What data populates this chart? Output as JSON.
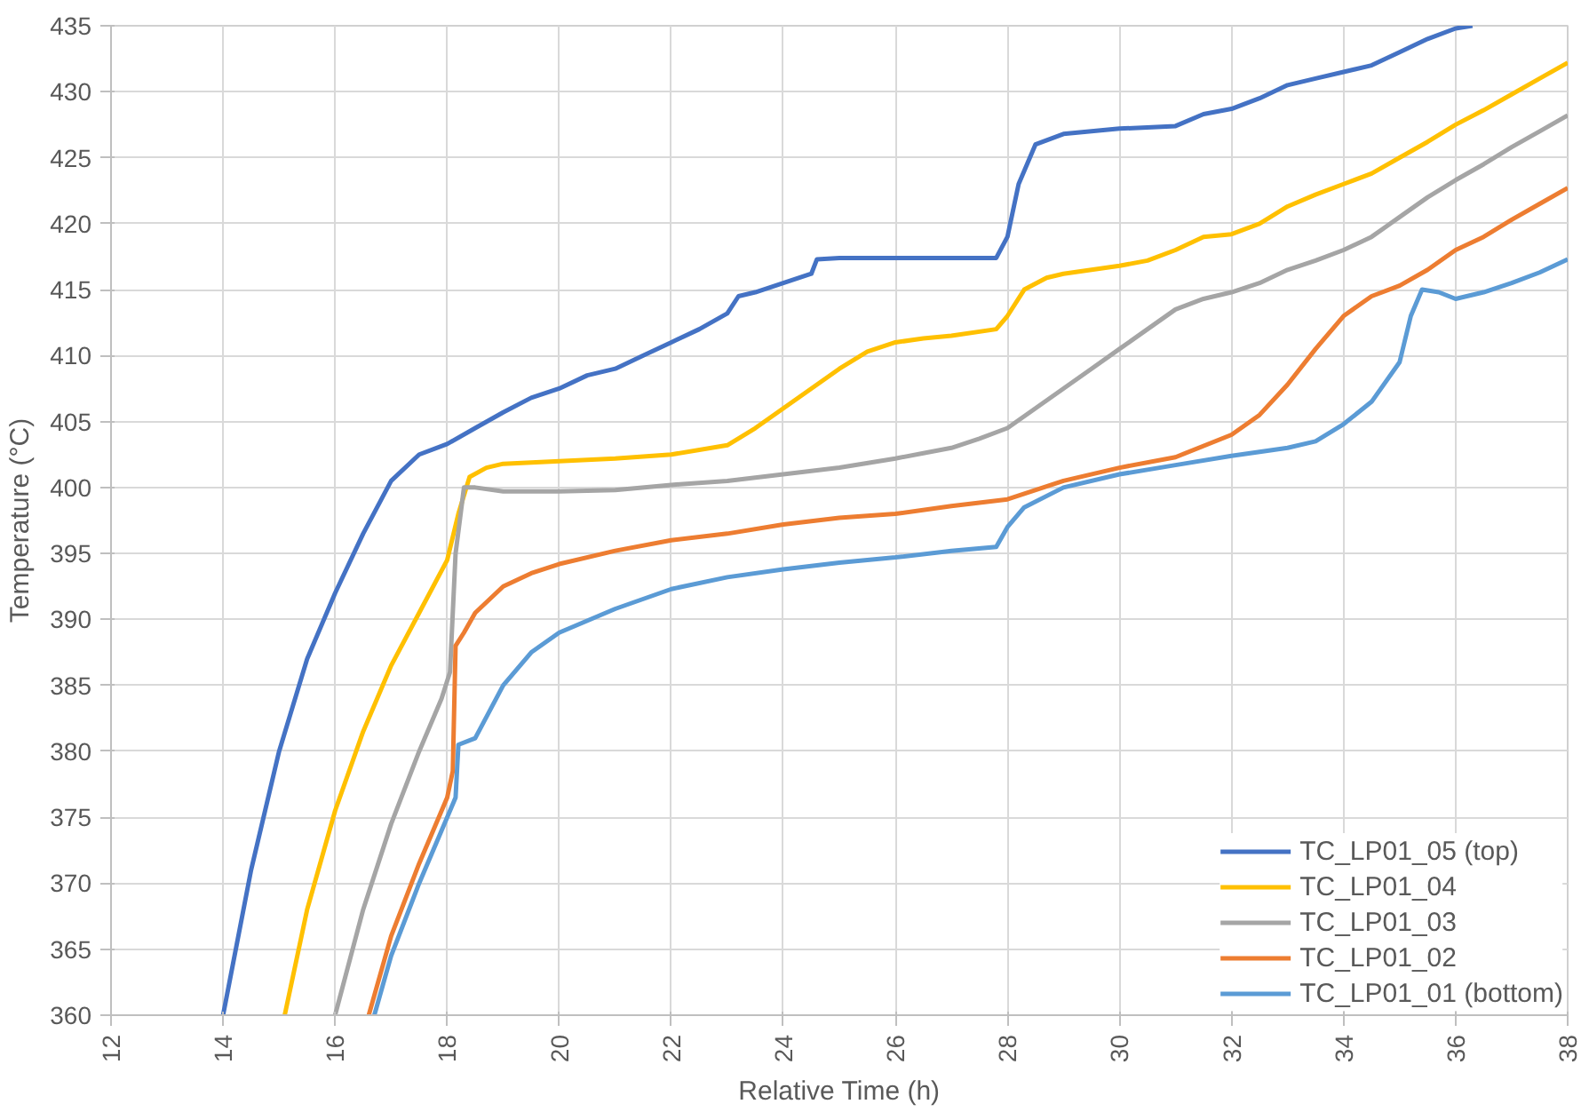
{
  "chart_data": {
    "type": "line",
    "xlabel": "Relative Time (h)",
    "ylabel": "Temperature (°C)",
    "xlim": [
      12,
      38
    ],
    "ylim": [
      360,
      435
    ],
    "xticks": [
      12,
      14,
      16,
      18,
      20,
      22,
      24,
      26,
      28,
      30,
      32,
      34,
      36,
      38
    ],
    "yticks": [
      360,
      365,
      370,
      375,
      380,
      385,
      390,
      395,
      400,
      405,
      410,
      415,
      420,
      425,
      430,
      435
    ],
    "grid": true,
    "legend": "bottom right",
    "marker": "none",
    "line_style": "solid",
    "series": [
      {
        "name": "TC_LP01_05 (top)",
        "color": "#4472c4",
        "x": [
          14.0,
          14.5,
          15,
          15.5,
          16,
          16.5,
          17,
          17.5,
          18,
          18.5,
          19,
          19.5,
          20,
          20.5,
          21,
          21.5,
          22,
          22.5,
          23,
          23.2,
          23.5,
          24,
          24.5,
          24.6,
          25,
          26,
          27,
          27.8,
          28,
          28.2,
          28.5,
          29,
          30,
          31,
          31.5,
          32,
          32.5,
          33,
          33.5,
          34,
          34.5,
          35,
          35.5,
          36,
          36.3
        ],
        "values": [
          360,
          371,
          380,
          387,
          392,
          396.5,
          400.5,
          402.5,
          403.3,
          404.5,
          405.7,
          406.8,
          407.5,
          408.5,
          409,
          410,
          411,
          412,
          413.2,
          414.5,
          414.8,
          415.5,
          416.2,
          417.3,
          417.4,
          417.4,
          417.4,
          417.4,
          419,
          423,
          426,
          426.8,
          427.2,
          427.4,
          428.3,
          428.7,
          429.5,
          430.5,
          431,
          431.5,
          432,
          433,
          434,
          434.8,
          435
        ]
      },
      {
        "name": "TC_LP01_04",
        "color": "#ffc000",
        "x": [
          15.1,
          15.5,
          16,
          16.5,
          17,
          17.5,
          18,
          18.2,
          18.4,
          18.7,
          19,
          20,
          21,
          22,
          23,
          23.5,
          24,
          24.5,
          25,
          25.5,
          26,
          26.5,
          27,
          27.8,
          28,
          28.3,
          28.7,
          29,
          30,
          30.5,
          31,
          31.5,
          32,
          32.5,
          33,
          33.5,
          34,
          34.5,
          35,
          35.5,
          36,
          36.5,
          37,
          37.5,
          38
        ],
        "values": [
          360,
          368,
          375.5,
          381.5,
          386.5,
          390.5,
          394.5,
          398,
          400.8,
          401.5,
          401.8,
          402,
          402.2,
          402.5,
          403.2,
          404.5,
          406,
          407.5,
          409,
          410.3,
          411,
          411.3,
          411.5,
          412,
          413,
          415,
          415.9,
          416.2,
          416.8,
          417.2,
          418,
          419,
          419.2,
          420,
          421.3,
          422.2,
          423,
          423.8,
          425,
          426.2,
          427.5,
          428.6,
          429.8,
          431,
          432.2
        ]
      },
      {
        "name": "TC_LP01_03",
        "color": "#a5a5a5",
        "x": [
          16.0,
          16.5,
          17,
          17.5,
          17.9,
          18.05,
          18.15,
          18.3,
          18.5,
          19,
          20,
          21,
          22,
          23,
          24,
          25,
          26,
          27,
          27.5,
          28,
          28.5,
          29,
          29.5,
          30,
          30.5,
          31,
          31.5,
          32,
          32.5,
          33,
          33.5,
          34,
          34.5,
          35,
          35.5,
          36,
          36.5,
          37,
          37.5,
          38
        ],
        "values": [
          360,
          368,
          374.5,
          380,
          384,
          386,
          395,
          400,
          400,
          399.7,
          399.7,
          399.8,
          400.2,
          400.5,
          401,
          401.5,
          402.2,
          403,
          403.7,
          404.5,
          406,
          407.5,
          409,
          410.5,
          412,
          413.5,
          414.3,
          414.8,
          415.5,
          416.5,
          417.2,
          418,
          419,
          420.5,
          422,
          423.3,
          424.5,
          425.8,
          427,
          428.2
        ]
      },
      {
        "name": "TC_LP01_02",
        "color": "#ed7d31",
        "x": [
          16.6,
          17,
          17.5,
          18,
          18.1,
          18.15,
          18.3,
          18.5,
          19,
          19.5,
          20,
          21,
          22,
          23,
          24,
          25,
          26,
          27,
          28,
          29,
          30,
          31,
          32,
          32.5,
          33,
          33.5,
          34,
          34.5,
          35,
          35.5,
          36,
          36.5,
          37,
          37.5,
          38
        ],
        "values": [
          360,
          366,
          371.5,
          376.5,
          378.5,
          388,
          389,
          390.5,
          392.5,
          393.5,
          394.2,
          395.2,
          396,
          396.5,
          397.2,
          397.7,
          398,
          398.6,
          399.1,
          400.5,
          401.5,
          402.3,
          404,
          405.5,
          407.8,
          410.5,
          413,
          414.5,
          415.3,
          416.5,
          418,
          419,
          420.3,
          421.5,
          422.7
        ]
      },
      {
        "name": "TC_LP01_01 (bottom)",
        "color": "#5b9bd5",
        "x": [
          16.7,
          17,
          17.5,
          18,
          18.15,
          18.2,
          18.5,
          19,
          19.5,
          20,
          21,
          22,
          23,
          24,
          25,
          26,
          27,
          27.8,
          28,
          28.3,
          29,
          30,
          31,
          32,
          33,
          33.5,
          34,
          34.5,
          35,
          35.2,
          35.4,
          35.7,
          36,
          36.5,
          37,
          37.5,
          38
        ],
        "values": [
          360,
          364.5,
          370,
          375,
          376.5,
          380.5,
          381,
          385,
          387.5,
          389,
          390.8,
          392.3,
          393.2,
          393.8,
          394.3,
          394.7,
          395.2,
          395.5,
          397,
          398.5,
          400,
          401,
          401.7,
          402.4,
          403,
          403.5,
          404.8,
          406.5,
          409.5,
          413,
          415,
          414.8,
          414.3,
          414.8,
          415.5,
          416.3,
          417.3
        ]
      }
    ]
  }
}
